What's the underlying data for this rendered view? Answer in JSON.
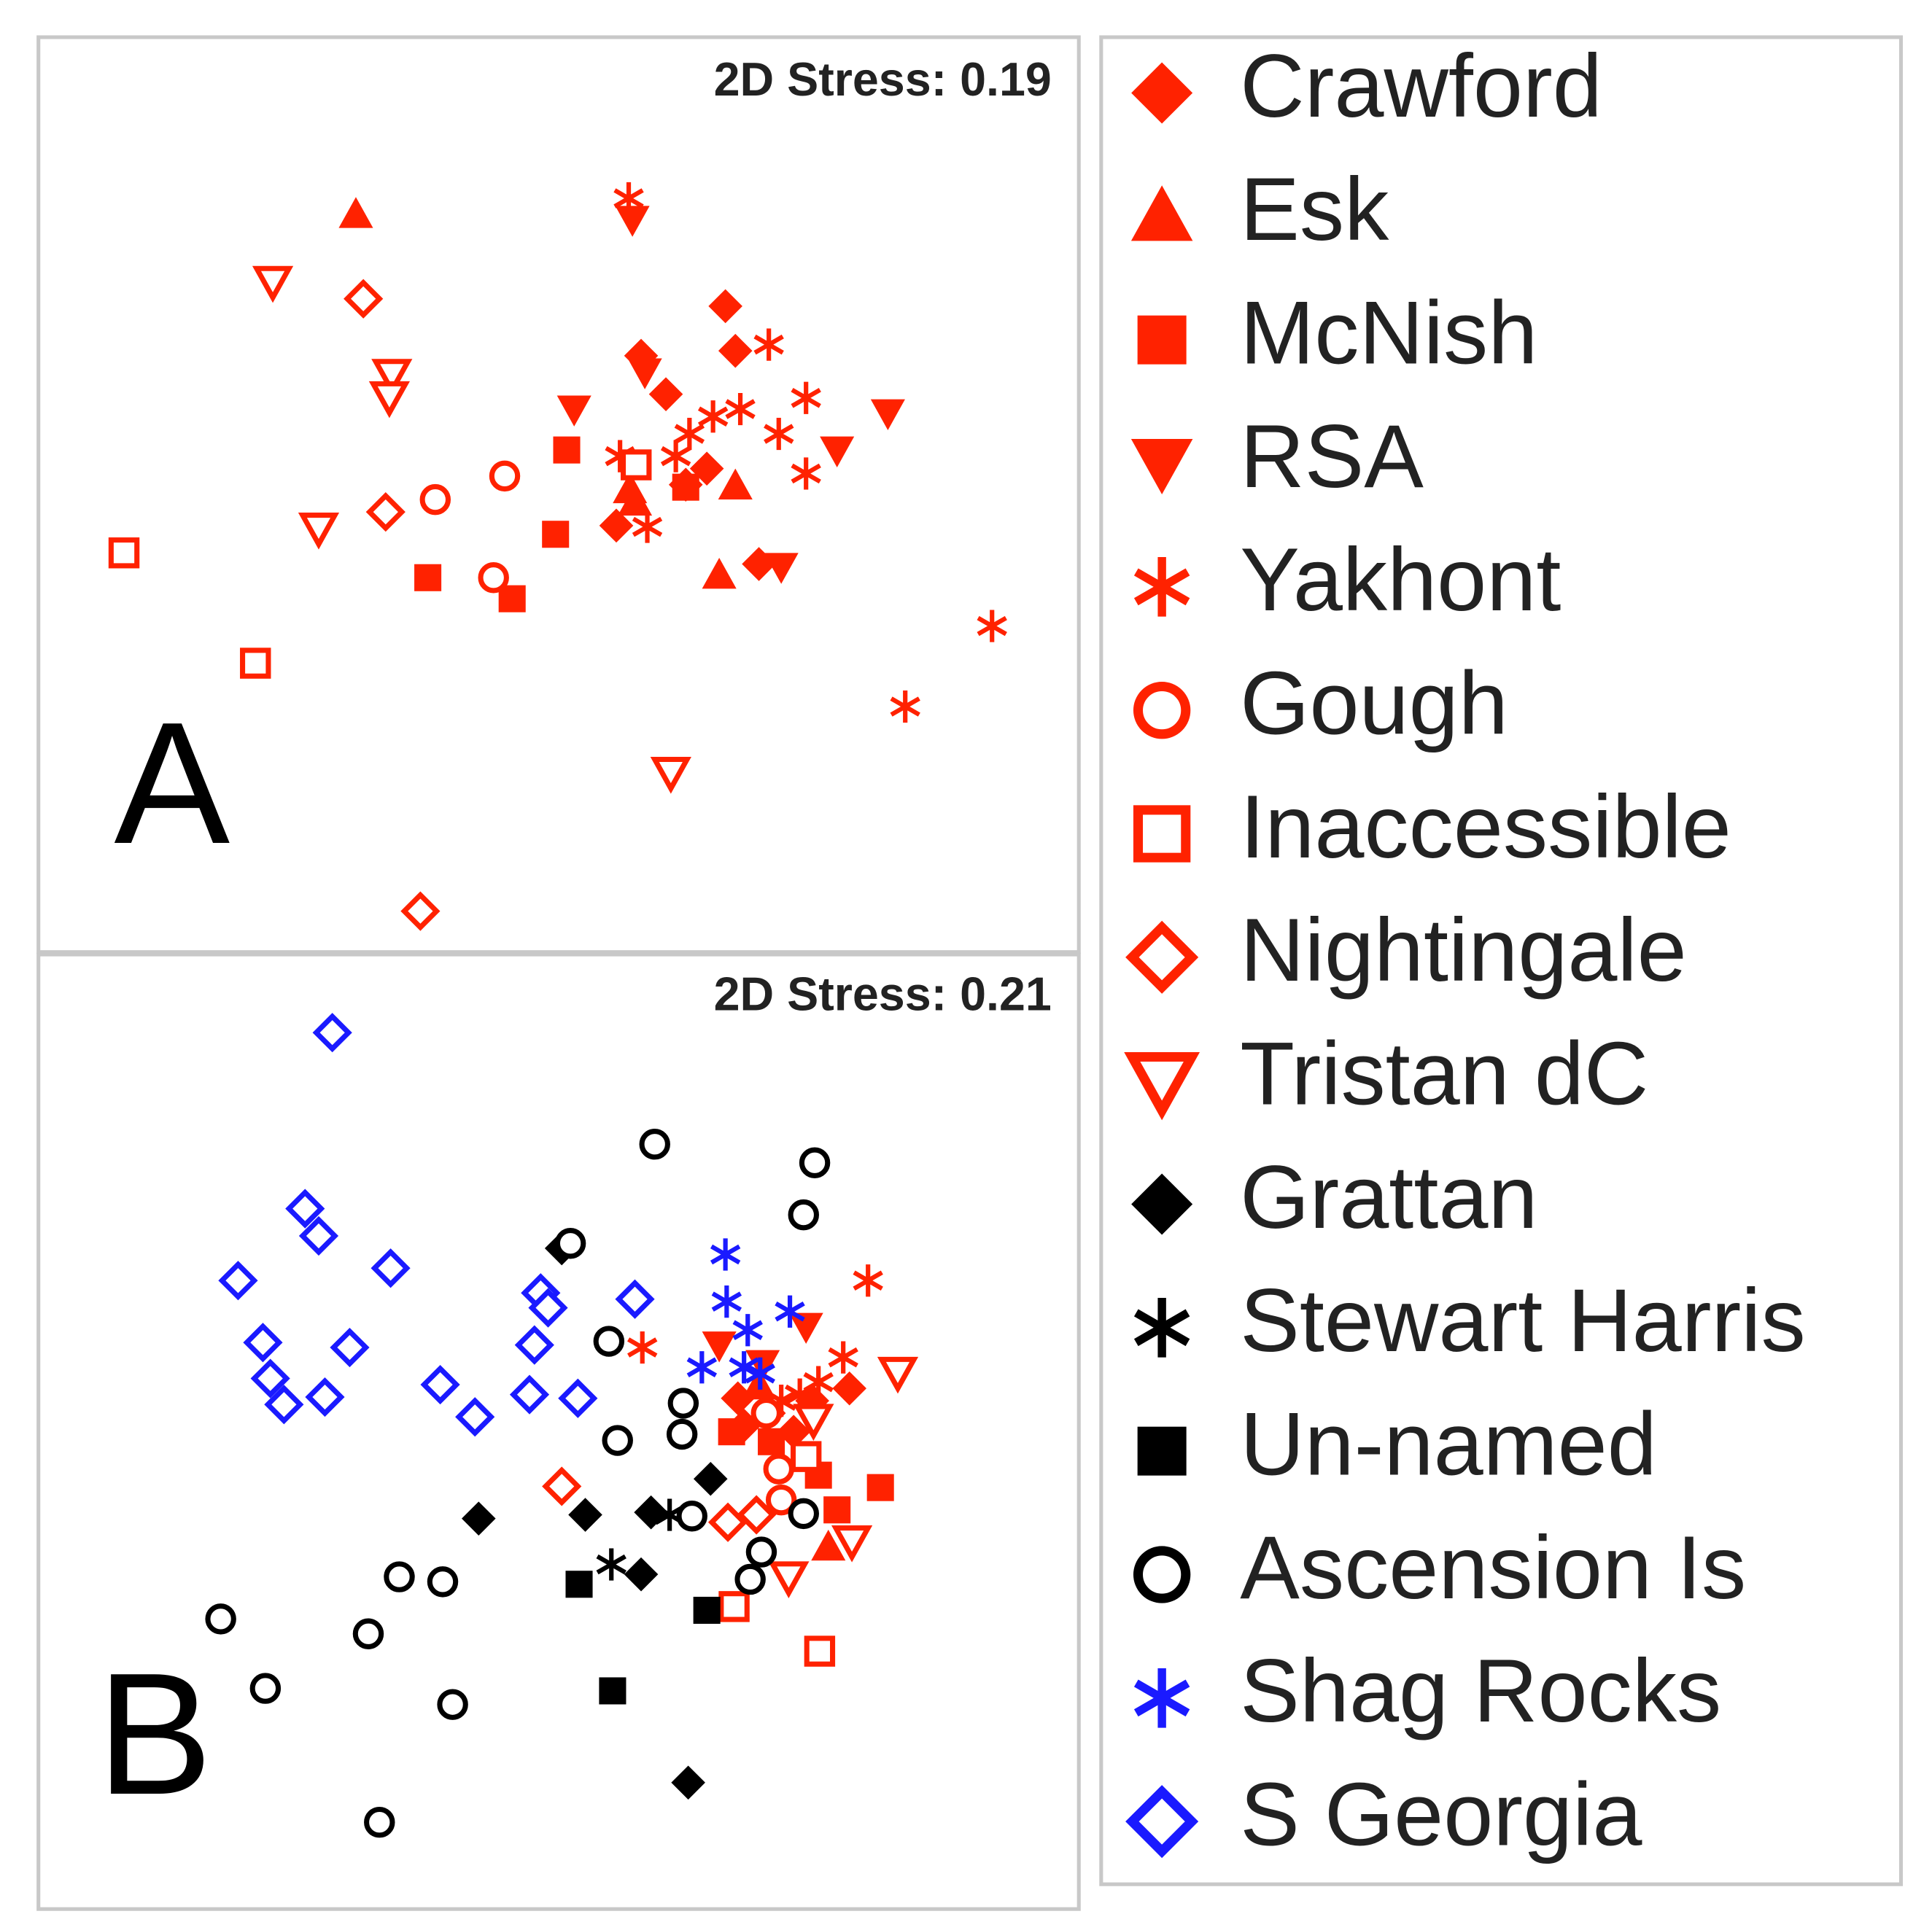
{
  "chart_data": [
    {
      "type": "scatter",
      "panel_label": "A",
      "annotation": "2D Stress: 0.19",
      "xlim": [
        30,
        870
      ],
      "ylim": [
        0,
        735
      ],
      "series": [
        {
          "name": "Crawford",
          "color": "#ff2200",
          "marker": "diamond",
          "filled": true,
          "x": [
            585,
            593,
            517,
            537,
            570,
            553,
            497,
            612
          ],
          "y": [
            518,
            482,
            478,
            447,
            387,
            374,
            341,
            310
          ]
        },
        {
          "name": "Esk",
          "color": "#ff2200",
          "marker": "triangle-up",
          "filled": true,
          "x": [
            287,
            512,
            593,
            580,
            508
          ],
          "y": [
            592,
            360,
            373,
            301,
            370
          ]
        },
        {
          "name": "McNish",
          "color": "#ff2200",
          "marker": "square",
          "filled": true,
          "x": [
            457,
            448,
            345,
            413,
            553
          ],
          "y": [
            402,
            334,
            299,
            282,
            372
          ]
        },
        {
          "name": "RSA",
          "color": "#ff2200",
          "marker": "triangle-down",
          "filled": true,
          "x": [
            510,
            463,
            716,
            675,
            630,
            520
          ],
          "y": [
            588,
            435,
            432,
            402,
            308,
            465
          ]
        },
        {
          "name": "Yakhont",
          "color": "#ff2200",
          "marker": "asterisk",
          "filled": true,
          "x": [
            507,
            620,
            650,
            628,
            650,
            597,
            575,
            556,
            500,
            545,
            522,
            800,
            730
          ],
          "y": [
            605,
            487,
            444,
            415,
            383,
            435,
            429,
            415,
            397,
            397,
            340,
            260,
            195
          ]
        },
        {
          "name": "Gough",
          "color": "#ff2200",
          "marker": "circle",
          "filled": false,
          "x": [
            407,
            351,
            398
          ],
          "y": [
            381,
            362,
            299
          ]
        },
        {
          "name": "Inaccessible",
          "color": "#ff2200",
          "marker": "square",
          "filled": false,
          "x": [
            100,
            206,
            513
          ],
          "y": [
            319,
            230,
            390
          ]
        },
        {
          "name": "Nightingale",
          "color": "#ff2200",
          "marker": "diamond",
          "filled": false,
          "x": [
            293,
            311,
            339
          ],
          "y": [
            524,
            352,
            30
          ]
        },
        {
          "name": "Tristan dC",
          "color": "#ff2200",
          "marker": "triangle-down",
          "filled": false,
          "x": [
            220,
            316,
            314,
            257,
            541
          ],
          "y": [
            538,
            463,
            445,
            339,
            142
          ]
        }
      ]
    },
    {
      "type": "scatter",
      "panel_label": "B",
      "annotation": "2D Stress: 0.21",
      "xlim": [
        30,
        870
      ],
      "ylim": [
        0,
        760
      ],
      "series": [
        {
          "name": "Crawford",
          "color": "#ff2200",
          "marker": "diamond",
          "filled": true,
          "x": [
            595,
            620,
            655,
            685,
            640,
            600
          ],
          "y": [
            402,
            390,
            400,
            410,
            375,
            380
          ]
        },
        {
          "name": "Esk",
          "color": "#ff2200",
          "marker": "triangle-up",
          "filled": true,
          "x": [
            668,
            612
          ],
          "y": [
            282,
            412
          ]
        },
        {
          "name": "McNish",
          "color": "#ff2200",
          "marker": "square",
          "filled": true,
          "x": [
            590,
            660,
            710,
            675,
            622
          ],
          "y": [
            375,
            340,
            330,
            312,
            367
          ]
        },
        {
          "name": "RSA",
          "color": "#ff2200",
          "marker": "triangle-down",
          "filled": true,
          "x": [
            580,
            650,
            615
          ],
          "y": [
            445,
            460,
            430
          ]
        },
        {
          "name": "Yakhont",
          "color": "#ff2200",
          "marker": "asterisk",
          "filled": true,
          "x": [
            518,
            700,
            680,
            660,
            630,
            645
          ],
          "y": [
            443,
            497,
            435,
            415,
            400,
            405
          ]
        },
        {
          "name": "Gough",
          "color": "#ff2200",
          "marker": "circle",
          "filled": false,
          "x": [
            628,
            630,
            618
          ],
          "y": [
            345,
            320,
            390
          ]
        },
        {
          "name": "Inaccessible",
          "color": "#ff2200",
          "marker": "square",
          "filled": false,
          "x": [
            592,
            661,
            650
          ],
          "y": [
            234,
            198,
            355
          ]
        },
        {
          "name": "Nightingale",
          "color": "#ff2200",
          "marker": "diamond",
          "filled": false,
          "x": [
            453,
            587,
            610
          ],
          "y": [
            331,
            302,
            308
          ]
        },
        {
          "name": "Tristan dC",
          "color": "#ff2200",
          "marker": "triangle-down",
          "filled": false,
          "x": [
            724,
            687,
            636,
            656
          ],
          "y": [
            423,
            287,
            258,
            385
          ]
        },
        {
          "name": "Grattan",
          "color": "#000000",
          "marker": "diamond",
          "filled": true,
          "x": [
            453,
            573,
            386,
            472,
            525,
            517,
            555
          ],
          "y": [
            523,
            337,
            305,
            308,
            310,
            260,
            92
          ]
        },
        {
          "name": "Stewart Harris",
          "color": "#000000",
          "marker": "asterisk",
          "filled": true,
          "x": [
            493,
            540
          ],
          "y": [
            268,
            308
          ]
        },
        {
          "name": "Un-named",
          "color": "#000000",
          "marker": "square",
          "filled": true,
          "x": [
            467,
            570,
            494
          ],
          "y": [
            252,
            231,
            166
          ]
        },
        {
          "name": "Ascension Is",
          "color": "#000000",
          "marker": "circle",
          "filled": false,
          "x": [
            528,
            657,
            648,
            460,
            491,
            551,
            550,
            498,
            558,
            614,
            605,
            322,
            357,
            178,
            297,
            214,
            365,
            306,
            648
          ],
          "y": [
            607,
            592,
            550,
            527,
            448,
            398,
            373,
            368,
            307,
            278,
            256,
            258,
            254,
            224,
            212,
            168,
            155,
            60,
            309
          ]
        },
        {
          "name": "Shag Rocks",
          "color": "#1a1aff",
          "marker": "asterisk",
          "filled": true,
          "x": [
            585,
            586,
            637,
            603,
            566,
            600,
            613
          ],
          "y": [
            518,
            480,
            472,
            457,
            427,
            427,
            422
          ]
        },
        {
          "name": "S Georgia",
          "color": "#1a1aff",
          "marker": "diamond",
          "filled": false,
          "x": [
            268,
            246,
            257,
            192,
            315,
            212,
            282,
            218,
            229,
            262,
            355,
            383,
            427,
            466,
            431,
            436,
            442,
            512
          ],
          "y": [
            697,
            555,
            533,
            497,
            507,
            447,
            443,
            418,
            397,
            403,
            413,
            387,
            405,
            402,
            445,
            487,
            475,
            482
          ]
        }
      ]
    }
  ]
}
